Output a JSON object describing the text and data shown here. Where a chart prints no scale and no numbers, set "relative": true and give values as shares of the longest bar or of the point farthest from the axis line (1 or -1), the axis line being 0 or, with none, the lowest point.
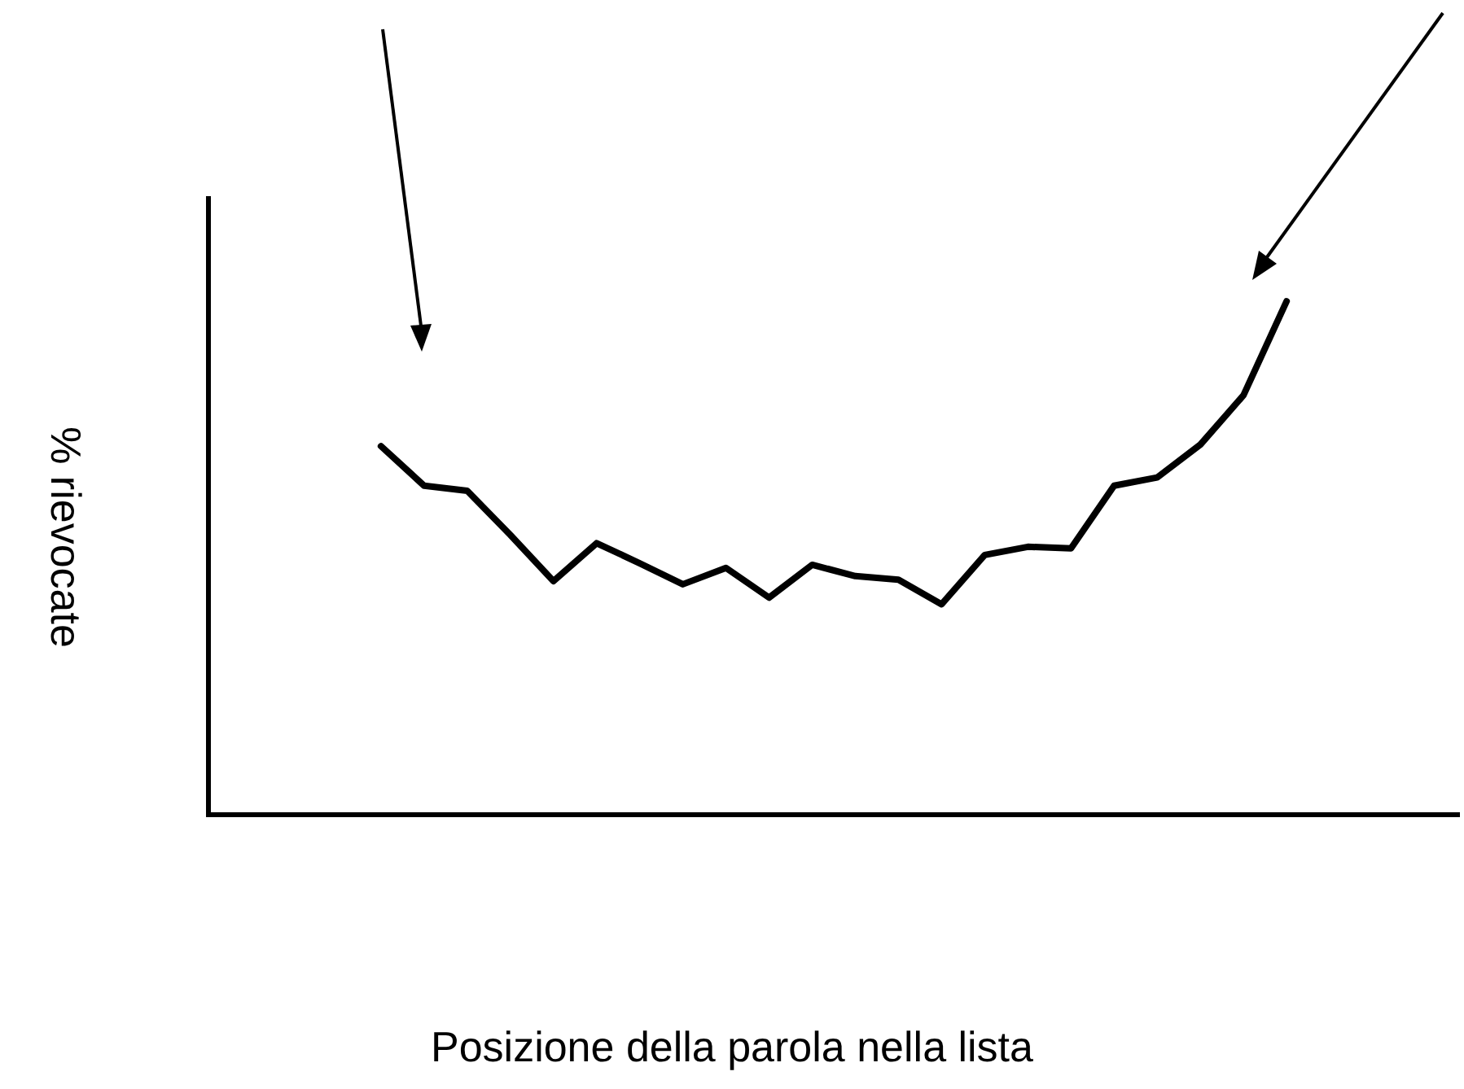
{
  "chart_data": {
    "type": "line",
    "xlabel": "Posizione della parola nella lista",
    "ylabel": "% rievocate",
    "relative": true,
    "marker": "none",
    "line_style": "solid",
    "color": "#000000",
    "categories": [
      null,
      null,
      null,
      null,
      null,
      null,
      null,
      null,
      null,
      null,
      null,
      null,
      null,
      null,
      null,
      null,
      null,
      null,
      null,
      null,
      null,
      null,
      null,
      null,
      null,
      null,
      null,
      null,
      null,
      null
    ],
    "values": [
      null,
      null,
      null,
      null,
      0.718,
      0.641,
      0.631,
      0.545,
      0.455,
      0.529,
      0.49,
      0.449,
      0.481,
      0.423,
      0.487,
      0.465,
      0.458,
      0.41,
      0.506,
      0.522,
      0.519,
      0.641,
      0.657,
      0.721,
      0.817,
      1,
      null,
      null,
      null,
      null
    ]
  }
}
